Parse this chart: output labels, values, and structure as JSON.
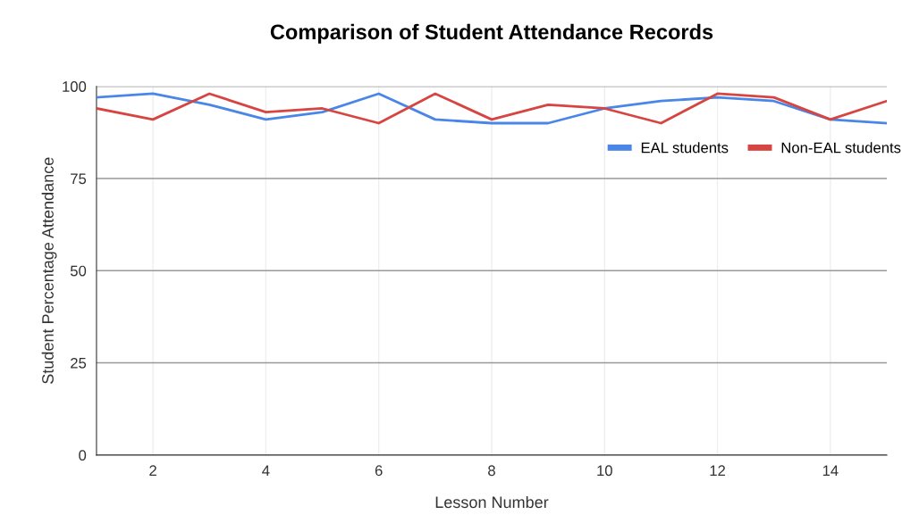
{
  "chart_data": {
    "type": "line",
    "title": "Comparison of Student Attendance Records",
    "xlabel": "Lesson Number",
    "ylabel": "Student Percentage Attendance",
    "x": [
      1,
      2,
      3,
      4,
      5,
      6,
      7,
      8,
      9,
      10,
      11,
      12,
      13,
      14,
      15
    ],
    "series": [
      {
        "name": "EAL students",
        "color": "#4a86e8",
        "values": [
          97,
          98,
          95,
          91,
          93,
          98,
          91,
          90,
          90,
          94,
          96,
          97,
          96,
          91,
          90
        ]
      },
      {
        "name": "Non-EAL students",
        "color": "#d64541",
        "values": [
          94,
          91,
          98,
          93,
          94,
          90,
          98,
          91,
          95,
          94,
          90,
          98,
          97,
          91,
          96
        ]
      }
    ],
    "xlim": [
      1,
      15
    ],
    "xticks": [
      2,
      4,
      6,
      8,
      10,
      12,
      14
    ],
    "ylim": [
      0,
      100
    ],
    "yticks": [
      0,
      25,
      50,
      75,
      100
    ],
    "grid": true,
    "legend": "right",
    "marker": "none",
    "line_style": "solid"
  }
}
